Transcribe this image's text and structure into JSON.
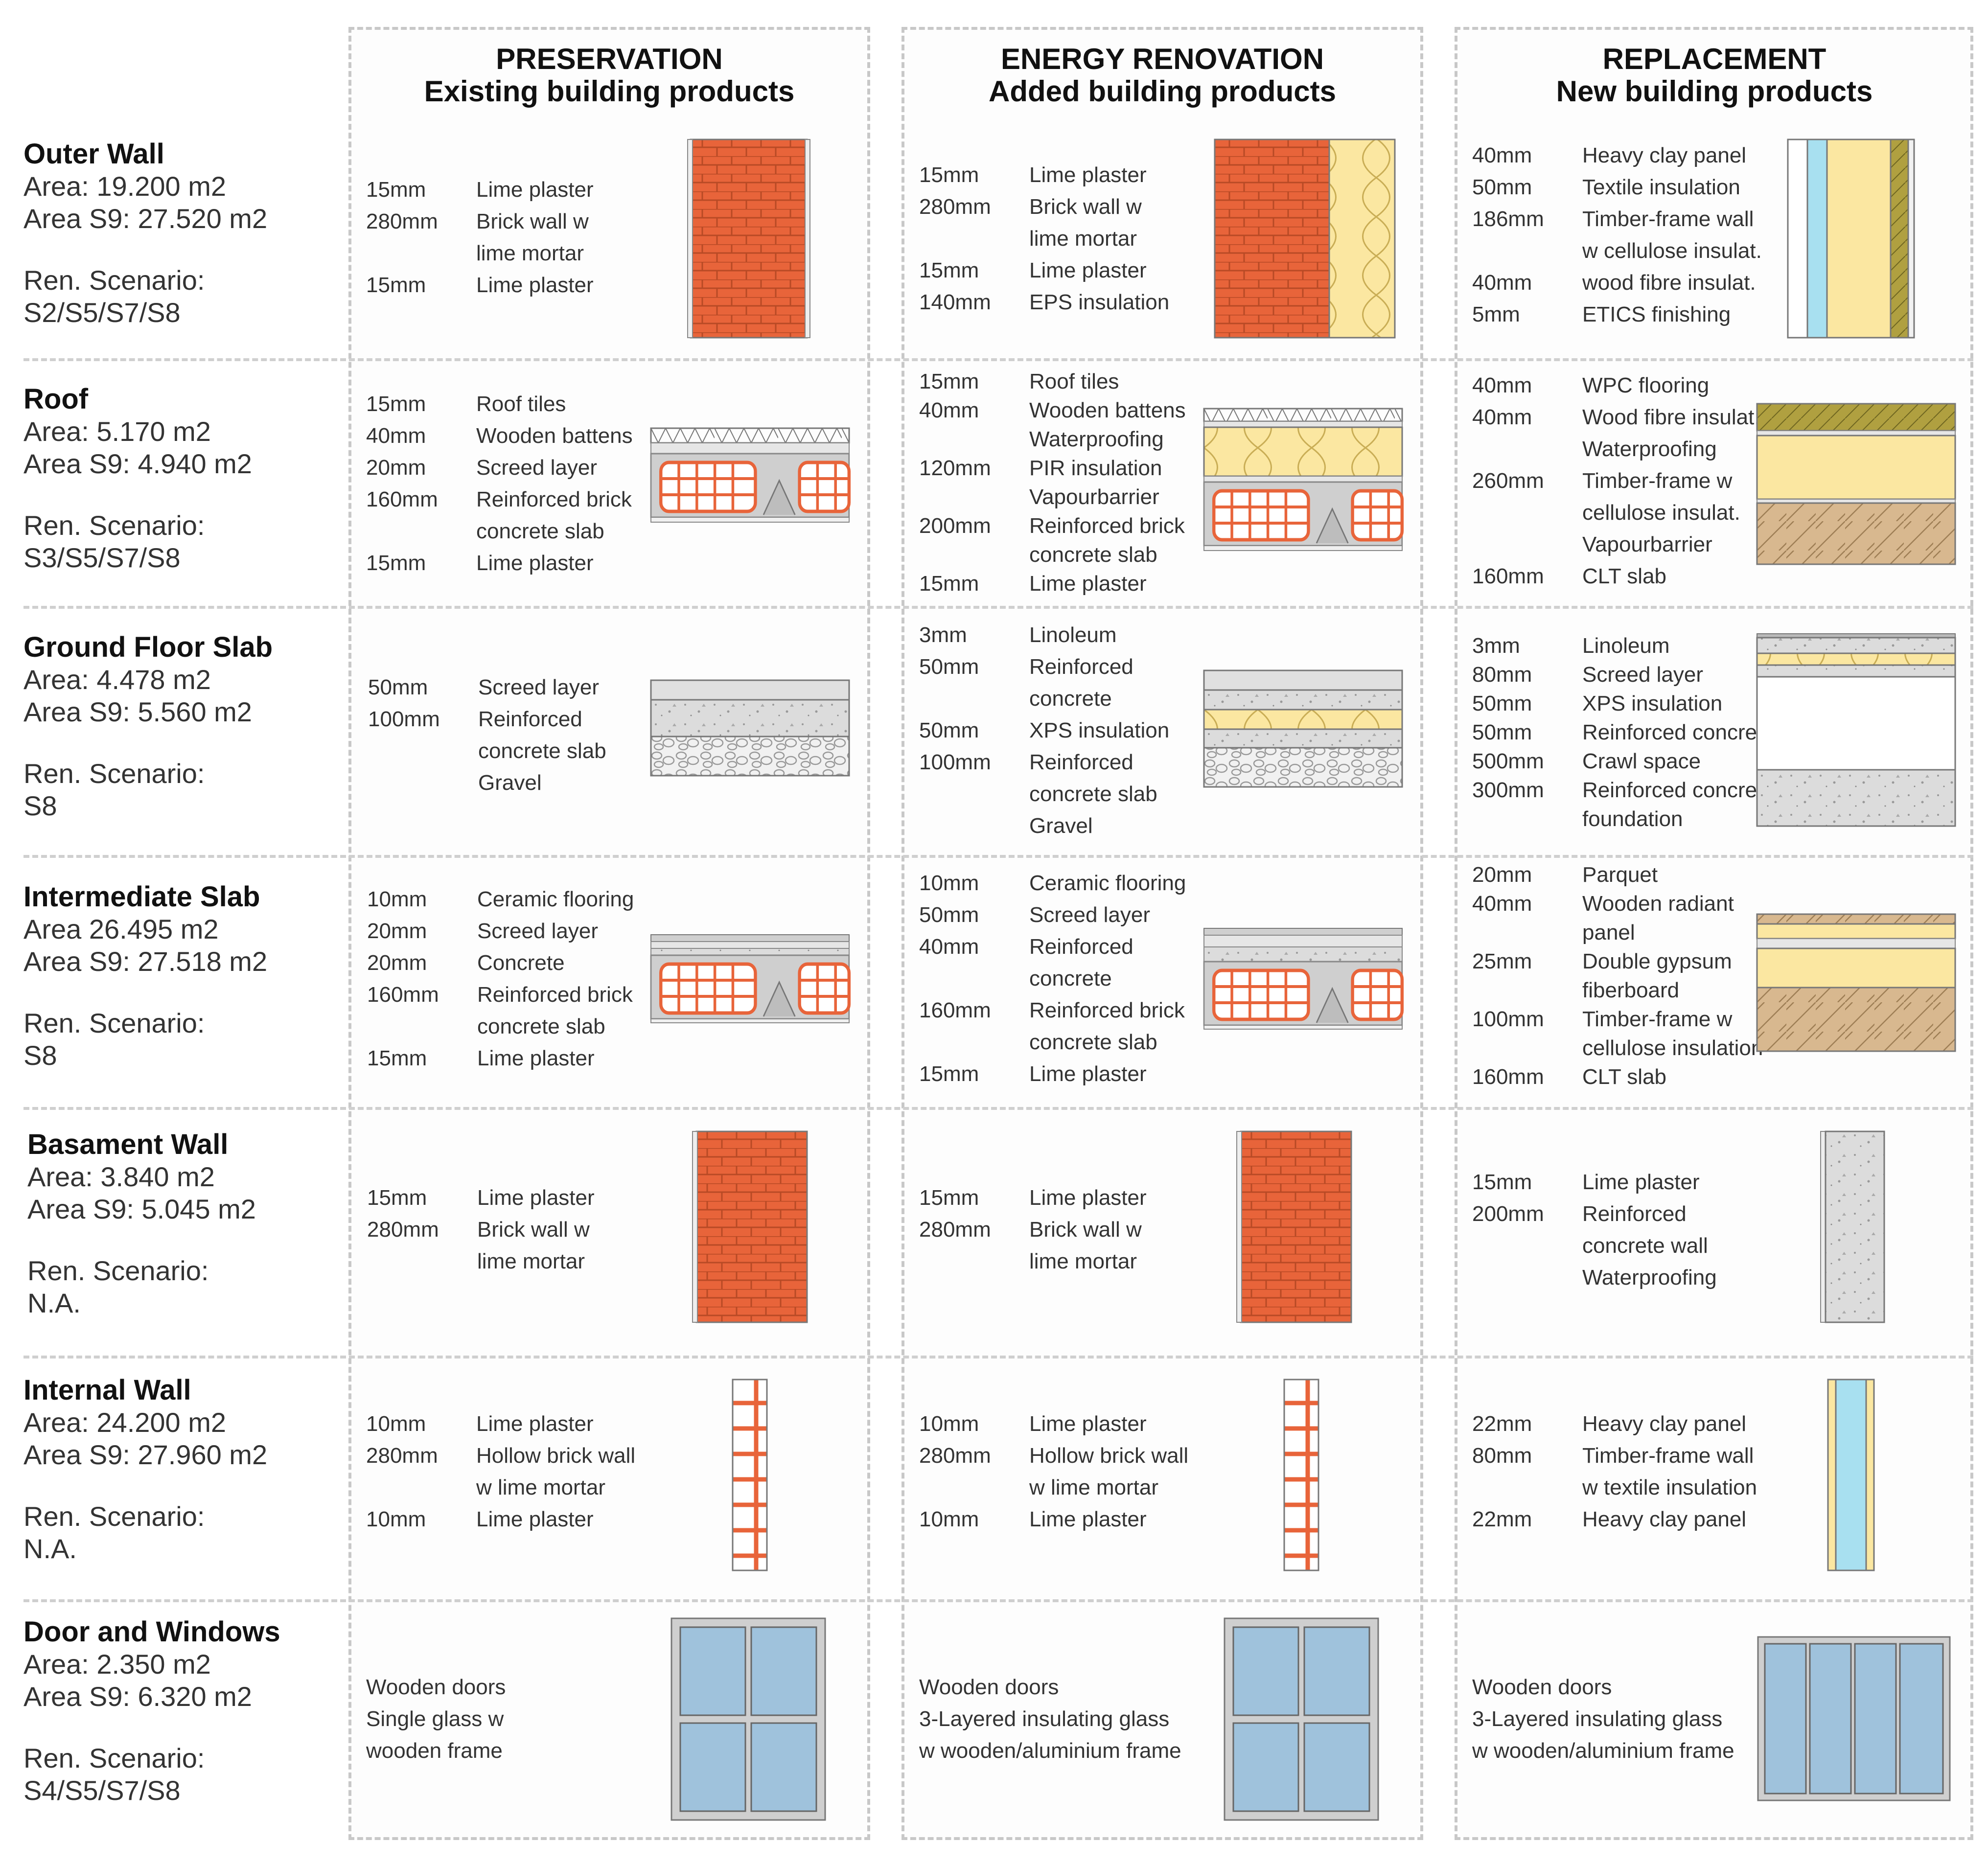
{
  "columns": [
    {
      "title": "PRESERVATION",
      "subtitle": "Existing building products"
    },
    {
      "title": "ENERGY RENOVATION",
      "subtitle": "Added building products"
    },
    {
      "title": "REPLACEMENT",
      "subtitle": "New building products"
    }
  ],
  "rows": [
    {
      "name": "Outer Wall",
      "area": "Area: 19.200 m2",
      "area_s9": "Area S9: 27.520 m2",
      "scenario_label": "Ren. Scenario:",
      "scenario": "S2/S5/S7/S8",
      "cells": [
        [
          [
            "15mm",
            "Lime plaster"
          ],
          [
            "280mm",
            "Brick wall w"
          ],
          [
            "",
            "lime mortar"
          ],
          [
            "15mm",
            "Lime plaster"
          ]
        ],
        [
          [
            "15mm",
            "Lime plaster"
          ],
          [
            "280mm",
            "Brick wall w"
          ],
          [
            "",
            "lime mortar"
          ],
          [
            "15mm",
            "Lime plaster"
          ],
          [
            "140mm",
            "EPS insulation"
          ]
        ],
        [
          [
            "40mm",
            "Heavy clay panel"
          ],
          [
            "50mm",
            "Textile insulation"
          ],
          [
            "186mm",
            "Timber-frame wall"
          ],
          [
            "",
            "w cellulose insulat."
          ],
          [
            "40mm",
            "wood fibre insulat."
          ],
          [
            "5mm",
            "ETICS finishing"
          ]
        ]
      ]
    },
    {
      "name": "Roof",
      "area": "Area: 5.170 m2",
      "area_s9": "Area S9: 4.940 m2",
      "scenario_label": "Ren. Scenario:",
      "scenario": "S3/S5/S7/S8",
      "cells": [
        [
          [
            "15mm",
            "Roof tiles"
          ],
          [
            "40mm",
            "Wooden battens"
          ],
          [
            "20mm",
            "Screed layer"
          ],
          [
            "160mm",
            "Reinforced brick"
          ],
          [
            "",
            "concrete slab"
          ],
          [
            "15mm",
            "Lime plaster"
          ]
        ],
        [
          [
            "15mm",
            "Roof tiles"
          ],
          [
            "40mm",
            "Wooden battens"
          ],
          [
            "",
            "Waterproofing"
          ],
          [
            "120mm",
            "PIR insulation"
          ],
          [
            "",
            "Vapourbarrier"
          ],
          [
            "200mm",
            "Reinforced brick"
          ],
          [
            "",
            "concrete slab"
          ],
          [
            "15mm",
            "Lime plaster"
          ]
        ],
        [
          [
            "40mm",
            "WPC flooring"
          ],
          [
            "40mm",
            "Wood fibre insulat."
          ],
          [
            "",
            "Waterproofing"
          ],
          [
            "260mm",
            "Timber-frame w"
          ],
          [
            "",
            "cellulose insulat."
          ],
          [
            "",
            "Vapourbarrier"
          ],
          [
            "160mm",
            "CLT slab"
          ]
        ]
      ]
    },
    {
      "name": "Ground Floor Slab",
      "area": "Area: 4.478 m2",
      "area_s9": "Area S9: 5.560 m2",
      "scenario_label": "Ren. Scenario:",
      "scenario": "S8",
      "cells": [
        [
          [
            "50mm",
            "Screed layer"
          ],
          [
            "100mm",
            "Reinforced"
          ],
          [
            "",
            "concrete slab"
          ],
          [
            "",
            "Gravel"
          ]
        ],
        [
          [
            "3mm",
            "Linoleum"
          ],
          [
            "50mm",
            "Reinforced"
          ],
          [
            "",
            "concrete"
          ],
          [
            "50mm",
            "XPS insulation"
          ],
          [
            "100mm",
            "Reinforced"
          ],
          [
            "",
            "concrete slab"
          ],
          [
            "",
            "Gravel"
          ]
        ],
        [
          [
            "3mm",
            "Linoleum"
          ],
          [
            "80mm",
            "Screed layer"
          ],
          [
            "50mm",
            "XPS insulation"
          ],
          [
            "50mm",
            "Reinforced concrete"
          ],
          [
            "500mm",
            "Crawl space"
          ],
          [
            "300mm",
            "Reinforced concrete"
          ],
          [
            "",
            "foundation"
          ]
        ]
      ]
    },
    {
      "name": "Intermediate Slab",
      "area": "Area 26.495 m2",
      "area_s9": "Area S9: 27.518 m2",
      "scenario_label": "Ren. Scenario:",
      "scenario": "S8",
      "cells": [
        [
          [
            "10mm",
            "Ceramic flooring"
          ],
          [
            "20mm",
            "Screed layer"
          ],
          [
            "20mm",
            "Concrete"
          ],
          [
            "160mm",
            "Reinforced brick"
          ],
          [
            "",
            "concrete slab"
          ],
          [
            "15mm",
            "Lime plaster"
          ]
        ],
        [
          [
            "10mm",
            "Ceramic flooring"
          ],
          [
            "50mm",
            "Screed layer"
          ],
          [
            "40mm",
            "Reinforced"
          ],
          [
            "",
            "concrete"
          ],
          [
            "160mm",
            "Reinforced brick"
          ],
          [
            "",
            "concrete slab"
          ],
          [
            "15mm",
            "Lime plaster"
          ]
        ],
        [
          [
            "20mm",
            "Parquet"
          ],
          [
            "40mm",
            "Wooden radiant"
          ],
          [
            "",
            "panel"
          ],
          [
            "25mm",
            "Double gypsum"
          ],
          [
            "",
            "fiberboard"
          ],
          [
            "100mm",
            "Timber-frame w"
          ],
          [
            "",
            "cellulose insulation"
          ],
          [
            "160mm",
            "CLT slab"
          ]
        ]
      ]
    },
    {
      "name": "Basament Wall",
      "area": "Area: 3.840 m2",
      "area_s9": "Area S9: 5.045 m2",
      "scenario_label": "Ren. Scenario:",
      "scenario": "N.A.",
      "cells": [
        [
          [
            "15mm",
            "Lime plaster"
          ],
          [
            "280mm",
            "Brick wall w"
          ],
          [
            "",
            "lime mortar"
          ]
        ],
        [
          [
            "15mm",
            "Lime plaster"
          ],
          [
            "280mm",
            "Brick wall w"
          ],
          [
            "",
            "lime mortar"
          ]
        ],
        [
          [
            "15mm",
            "Lime plaster"
          ],
          [
            "200mm",
            "Reinforced"
          ],
          [
            "",
            "concrete wall"
          ],
          [
            "",
            "Waterproofing"
          ]
        ]
      ]
    },
    {
      "name": "Internal Wall",
      "area": "Area: 24.200 m2",
      "area_s9": "Area S9: 27.960 m2",
      "scenario_label": "Ren. Scenario:",
      "scenario": "N.A.",
      "cells": [
        [
          [
            "10mm",
            "Lime plaster"
          ],
          [
            "280mm",
            "Hollow brick wall"
          ],
          [
            "",
            "w lime mortar"
          ],
          [
            "10mm",
            "Lime plaster"
          ]
        ],
        [
          [
            "10mm",
            "Lime plaster"
          ],
          [
            "280mm",
            "Hollow brick wall"
          ],
          [
            "",
            "w lime mortar"
          ],
          [
            "10mm",
            "Lime plaster"
          ]
        ],
        [
          [
            "22mm",
            "Heavy clay panel"
          ],
          [
            "80mm",
            "Timber-frame wall"
          ],
          [
            "",
            "w textile insulation"
          ],
          [
            "22mm",
            "Heavy clay panel"
          ]
        ]
      ]
    },
    {
      "name": "Door and Windows",
      "area": "Area: 2.350 m2",
      "area_s9": "Area S9: 6.320 m2",
      "scenario_label": "Ren. Scenario:",
      "scenario": "S4/S5/S7/S8",
      "cells": [
        [
          "Wooden doors",
          "Single glass w",
          "wooden frame"
        ],
        [
          "Wooden doors",
          "3-Layered insulating glass",
          "w wooden/aluminium frame"
        ],
        [
          "Wooden doors",
          "3-Layered insulating glass",
          "w wooden/aluminium frame"
        ]
      ]
    }
  ],
  "colors": {
    "brick": "#e8643a",
    "insulation": "#fbe7a1",
    "concrete": "#d9d9d9",
    "glass": "#9fc2dc",
    "wood": "#d8b88f",
    "textile": "#a8e0f0",
    "wood_fibre": "#b0a040"
  }
}
